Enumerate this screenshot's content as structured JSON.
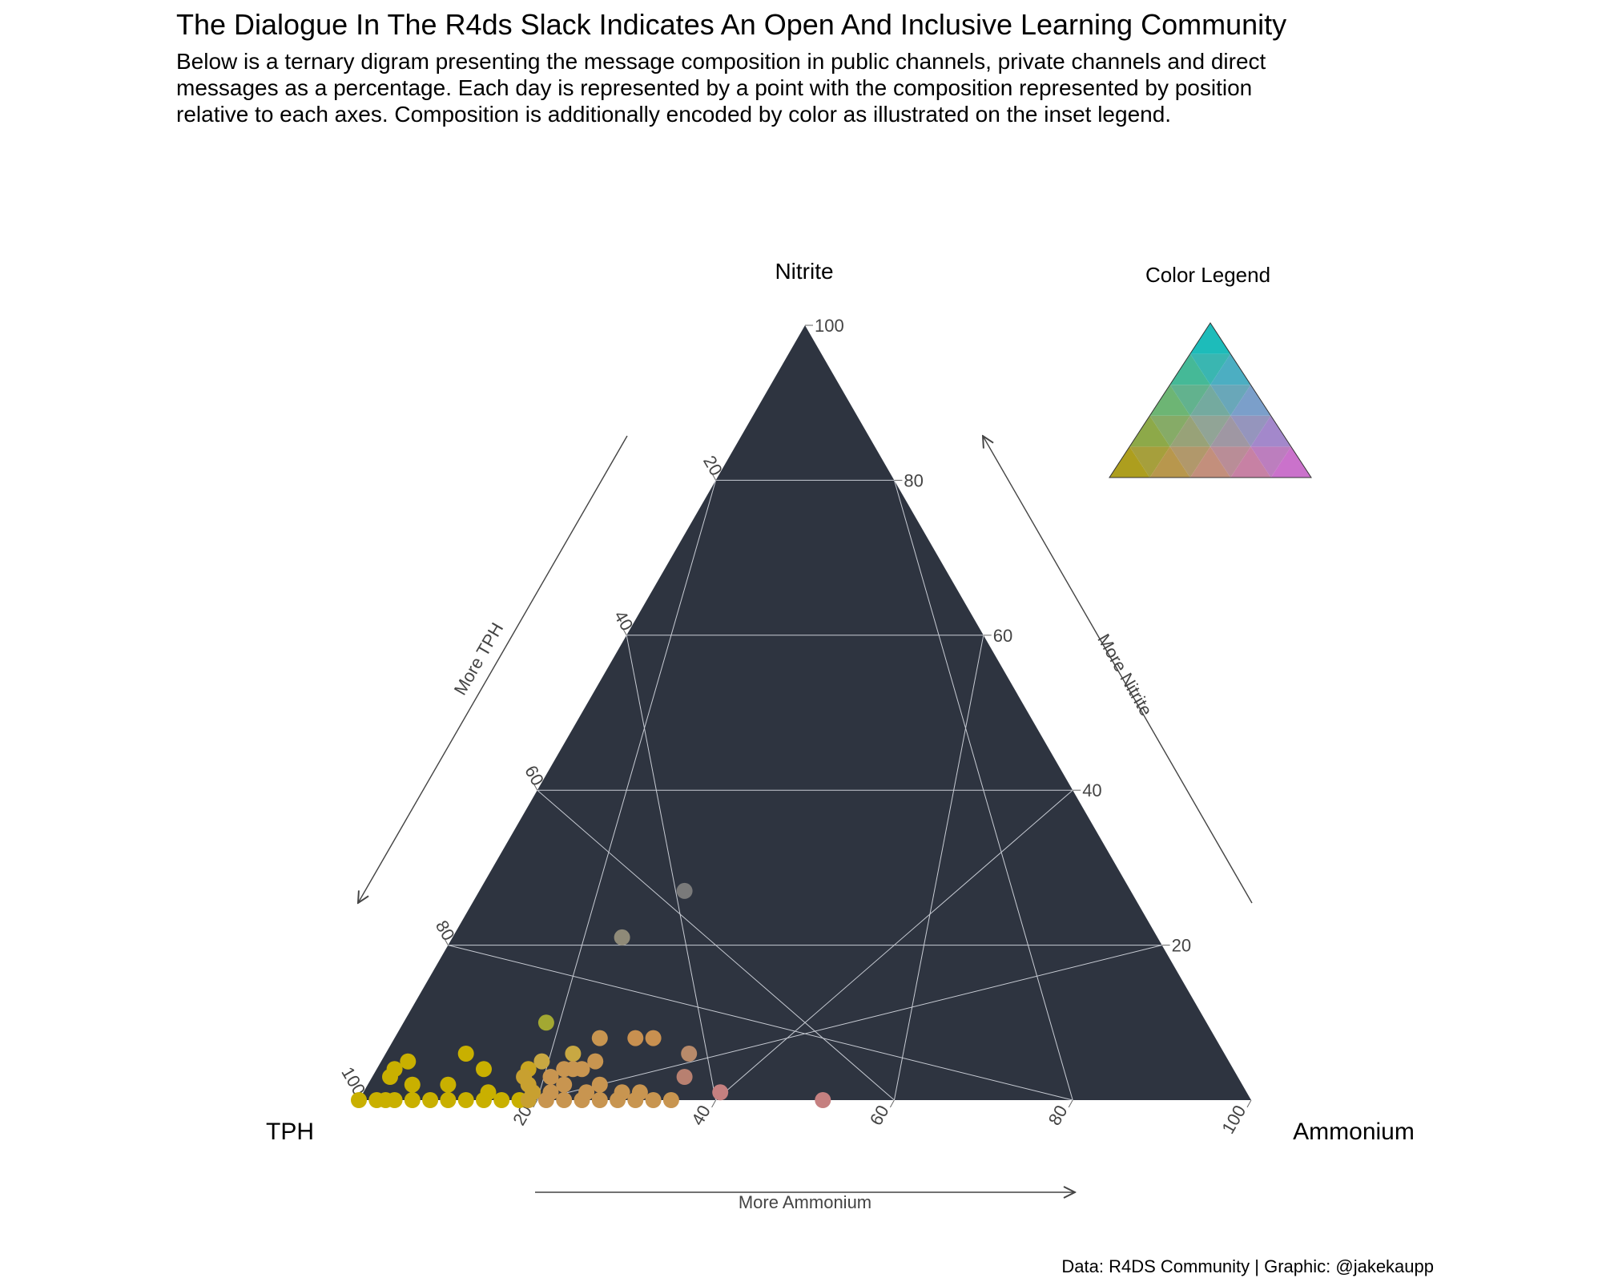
{
  "title": "The Dialogue In The R4ds Slack Indicates An Open And Inclusive Learning Community",
  "subtitle": "Below is a ternary digram presenting the message composition in public channels, private channels and direct messages as a percentage. Each day is represented by a point with the composition represented by position relative to each axes. Composition is additionally encoded by color as illustrated on the inset legend.",
  "caption": "Data: R4DS Community | Graphic: @jakekaupp",
  "chart_data": {
    "type": "scatter",
    "subtype": "ternary",
    "axes": {
      "top": {
        "label": "Nitrite",
        "arrow_label": "More Nitrite"
      },
      "left": {
        "label": "TPH",
        "arrow_label": "More TPH"
      },
      "right": {
        "label": "Ammonium",
        "arrow_label": "More Ammonium"
      }
    },
    "ticks": [
      20,
      40,
      60,
      80,
      100
    ],
    "left_ticks": [
      "20",
      "40",
      "60",
      "80",
      "100"
    ],
    "bottom_ticks": [
      "20",
      "40",
      "60",
      "80",
      "100"
    ],
    "right_ticks": [
      "20",
      "40",
      "60",
      "80",
      "100"
    ],
    "range": [
      0,
      100
    ],
    "grid": true,
    "panel_color": "#2e3440",
    "grid_color": "#c8ccd4",
    "legend": {
      "title": "Color Legend",
      "placement": "top-right",
      "colors": {
        "TPH": "#d4b800",
        "Nitrite": "#00e5e5",
        "Ammonium": "#ff77ff"
      }
    },
    "points": [
      {
        "tph": 50,
        "ammonium": 23,
        "nitrite": 27,
        "color": "#7a7a7a"
      },
      {
        "tph": 60,
        "ammonium": 19,
        "nitrite": 21,
        "color": "#8f8a78"
      },
      {
        "tph": 74,
        "ammonium": 16,
        "nitrite": 10,
        "color": "#a3a832"
      },
      {
        "tph": 77,
        "ammonium": 18,
        "nitrite": 5,
        "color": "#c8a842"
      },
      {
        "tph": 73,
        "ammonium": 21,
        "nitrite": 6,
        "color": "#c8a842"
      },
      {
        "tph": 69,
        "ammonium": 23,
        "nitrite": 8,
        "color": "#c89550"
      },
      {
        "tph": 65,
        "ammonium": 27,
        "nitrite": 8,
        "color": "#c89050"
      },
      {
        "tph": 63,
        "ammonium": 29,
        "nitrite": 8,
        "color": "#c89050"
      },
      {
        "tph": 60,
        "ammonium": 34,
        "nitrite": 6,
        "color": "#b88a6a"
      },
      {
        "tph": 62,
        "ammonium": 35,
        "nitrite": 3,
        "color": "#b88070"
      },
      {
        "tph": 59,
        "ammonium": 40,
        "nitrite": 1,
        "color": "#c58080"
      },
      {
        "tph": 48,
        "ammonium": 52,
        "nitrite": 0,
        "color": "#c58080"
      },
      {
        "tph": 85,
        "ammonium": 9,
        "nitrite": 6,
        "color": "#c9b000"
      },
      {
        "tph": 84,
        "ammonium": 12,
        "nitrite": 4,
        "color": "#c9b000"
      },
      {
        "tph": 92,
        "ammonium": 3,
        "nitrite": 5,
        "color": "#c9b000"
      },
      {
        "tph": 94,
        "ammonium": 2,
        "nitrite": 4,
        "color": "#c9b000"
      },
      {
        "tph": 95,
        "ammonium": 2,
        "nitrite": 3,
        "color": "#c9b000"
      },
      {
        "tph": 93,
        "ammonium": 5,
        "nitrite": 2,
        "color": "#c9b000"
      },
      {
        "tph": 89,
        "ammonium": 9,
        "nitrite": 2,
        "color": "#c9b000"
      },
      {
        "tph": 85,
        "ammonium": 14,
        "nitrite": 1,
        "color": "#c9b000"
      },
      {
        "tph": 79,
        "ammonium": 17,
        "nitrite": 4,
        "color": "#c9a520"
      },
      {
        "tph": 80,
        "ammonium": 18,
        "nitrite": 2,
        "color": "#c8a030"
      },
      {
        "tph": 80,
        "ammonium": 17,
        "nitrite": 3,
        "color": "#c8a030"
      },
      {
        "tph": 77,
        "ammonium": 20,
        "nitrite": 3,
        "color": "#c89550"
      },
      {
        "tph": 75,
        "ammonium": 21,
        "nitrite": 4,
        "color": "#c89550"
      },
      {
        "tph": 74,
        "ammonium": 22,
        "nitrite": 4,
        "color": "#c89550"
      },
      {
        "tph": 73,
        "ammonium": 23,
        "nitrite": 4,
        "color": "#c89550"
      },
      {
        "tph": 71,
        "ammonium": 24,
        "nitrite": 5,
        "color": "#c89550"
      },
      {
        "tph": 76,
        "ammonium": 22,
        "nitrite": 2,
        "color": "#c89550"
      },
      {
        "tph": 72,
        "ammonium": 26,
        "nitrite": 2,
        "color": "#c89550"
      },
      {
        "tph": 100,
        "ammonium": 0,
        "nitrite": 0,
        "color": "#c9b000"
      },
      {
        "tph": 98,
        "ammonium": 2,
        "nitrite": 0,
        "color": "#c9b000"
      },
      {
        "tph": 97,
        "ammonium": 3,
        "nitrite": 0,
        "color": "#c9b000"
      },
      {
        "tph": 96,
        "ammonium": 4,
        "nitrite": 0,
        "color": "#c9b000"
      },
      {
        "tph": 94,
        "ammonium": 6,
        "nitrite": 0,
        "color": "#c9b000"
      },
      {
        "tph": 92,
        "ammonium": 8,
        "nitrite": 0,
        "color": "#c9b000"
      },
      {
        "tph": 90,
        "ammonium": 10,
        "nitrite": 0,
        "color": "#c9b000"
      },
      {
        "tph": 88,
        "ammonium": 12,
        "nitrite": 0,
        "color": "#c9b000"
      },
      {
        "tph": 86,
        "ammonium": 14,
        "nitrite": 0,
        "color": "#c9b000"
      },
      {
        "tph": 84,
        "ammonium": 16,
        "nitrite": 0,
        "color": "#c9b000"
      },
      {
        "tph": 82,
        "ammonium": 18,
        "nitrite": 0,
        "color": "#c9b000"
      },
      {
        "tph": 81,
        "ammonium": 19,
        "nitrite": 0,
        "color": "#c8a030"
      },
      {
        "tph": 79,
        "ammonium": 21,
        "nitrite": 0,
        "color": "#c89550"
      },
      {
        "tph": 77,
        "ammonium": 23,
        "nitrite": 0,
        "color": "#c89550"
      },
      {
        "tph": 75,
        "ammonium": 25,
        "nitrite": 0,
        "color": "#c89550"
      },
      {
        "tph": 73,
        "ammonium": 27,
        "nitrite": 0,
        "color": "#c89550"
      },
      {
        "tph": 71,
        "ammonium": 29,
        "nitrite": 0,
        "color": "#c89550"
      },
      {
        "tph": 69,
        "ammonium": 31,
        "nitrite": 0,
        "color": "#c89550"
      },
      {
        "tph": 67,
        "ammonium": 33,
        "nitrite": 0,
        "color": "#c89550"
      },
      {
        "tph": 65,
        "ammonium": 35,
        "nitrite": 0,
        "color": "#c89550"
      },
      {
        "tph": 80,
        "ammonium": 19,
        "nitrite": 1,
        "color": "#c8a030"
      },
      {
        "tph": 78,
        "ammonium": 21,
        "nitrite": 1,
        "color": "#c89550"
      },
      {
        "tph": 74,
        "ammonium": 25,
        "nitrite": 1,
        "color": "#c89550"
      },
      {
        "tph": 70,
        "ammonium": 29,
        "nitrite": 1,
        "color": "#c89550"
      },
      {
        "tph": 68,
        "ammonium": 31,
        "nitrite": 1,
        "color": "#c89550"
      }
    ]
  }
}
